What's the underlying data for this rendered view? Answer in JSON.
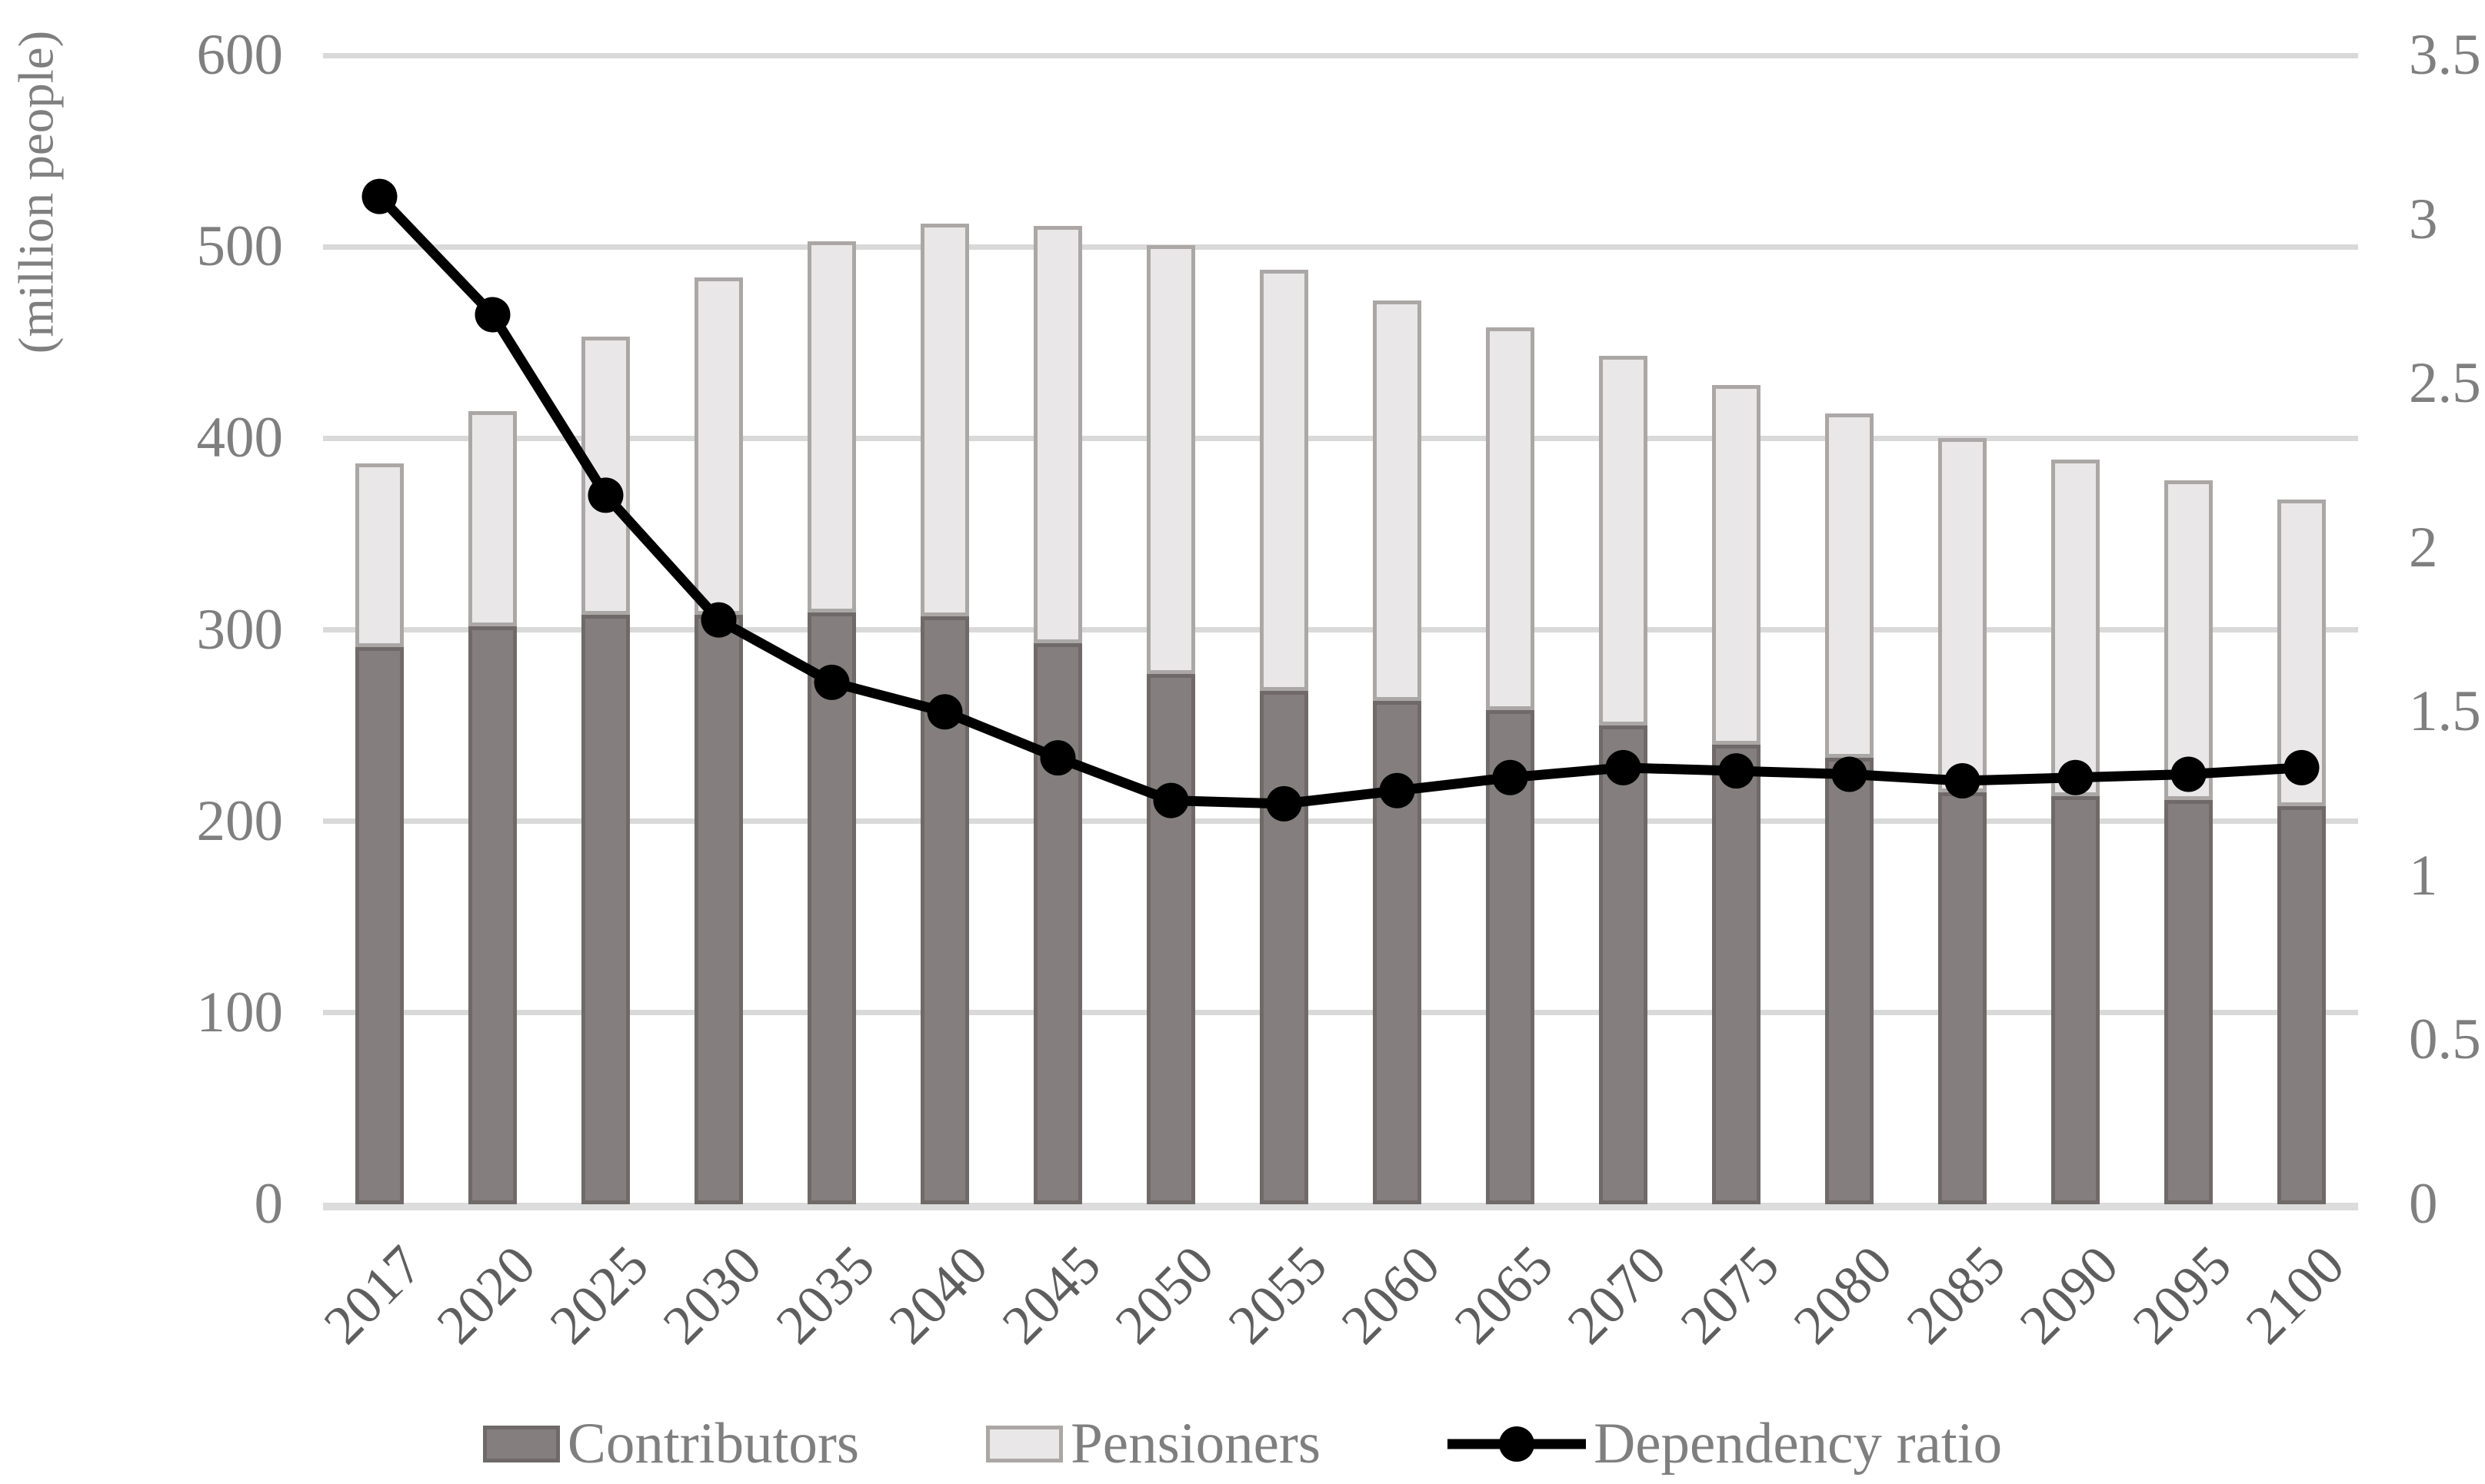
{
  "chart_data": {
    "type": "combo-stacked-bar-line",
    "title": "",
    "categories": [
      "2017",
      "2020",
      "2025",
      "2030",
      "2035",
      "2040",
      "2045",
      "2050",
      "2055",
      "2060",
      "2065",
      "2070",
      "2075",
      "2080",
      "2085",
      "2090",
      "2095",
      "2100"
    ],
    "series": [
      {
        "name": "Contributors",
        "type": "bar",
        "stacked": true,
        "axis": "left",
        "color": "#847e7e",
        "border_color": "#6f6969",
        "values": [
          291,
          302,
          308,
          308,
          309,
          307,
          293,
          277,
          268,
          263,
          258,
          250,
          240,
          233,
          215,
          213,
          211,
          208
        ]
      },
      {
        "name": "Pensioners",
        "type": "bar",
        "stacked": true,
        "axis": "left",
        "color": "#e9e7e7",
        "border_color": "#aba7a7",
        "values": [
          96,
          112,
          145,
          176,
          194,
          205,
          218,
          224,
          220,
          209,
          200,
          193,
          188,
          180,
          185,
          176,
          167,
          160
        ]
      },
      {
        "name": "Dependency ratio",
        "type": "line",
        "axis": "right",
        "color": "#000000",
        "marker": "circle",
        "values": [
          3.07,
          2.71,
          2.16,
          1.78,
          1.59,
          1.5,
          1.36,
          1.23,
          1.22,
          1.26,
          1.3,
          1.33,
          1.32,
          1.31,
          1.29,
          1.3,
          1.31,
          1.33
        ]
      }
    ],
    "left_axis": {
      "title": "(million people)",
      "min": 0,
      "max": 600,
      "tick_step": 100,
      "tick_labels": [
        "0",
        "100",
        "200",
        "300",
        "400",
        "500",
        "600"
      ]
    },
    "right_axis": {
      "min": 0,
      "max": 3.5,
      "tick_step": 0.5,
      "tick_labels": [
        "0",
        "0.5",
        "1",
        "1.5",
        "2",
        "2.5",
        "3",
        "3.5"
      ]
    },
    "legend_position": "bottom",
    "grid": "horizontal",
    "colors": {
      "gridline": "#d9d9d9",
      "axis_line": "#dcdcdc",
      "y_tick_label": "#7f7f7f",
      "x_tick_label": "#5e5e5e",
      "legend_text": "#7f7f7f",
      "background": "#ffffff"
    }
  }
}
